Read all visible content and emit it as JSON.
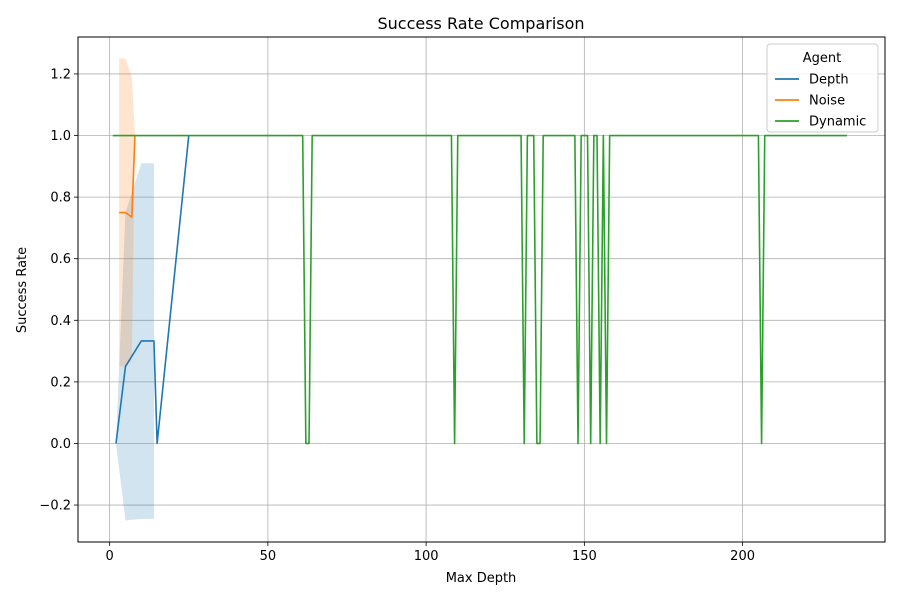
{
  "chart_data": {
    "type": "line",
    "title": "Success Rate Comparison",
    "xlabel": "Max Depth",
    "ylabel": "Success Rate",
    "xlim": [
      -10,
      245
    ],
    "ylim": [
      -0.32,
      1.32
    ],
    "xticks": [
      0,
      50,
      100,
      150,
      200
    ],
    "yticks": [
      -0.2,
      0.0,
      0.2,
      0.4,
      0.6,
      0.8,
      1.0,
      1.2
    ],
    "xtick_labels": [
      "0",
      "50",
      "100",
      "150",
      "200"
    ],
    "ytick_labels": [
      "−0.2",
      "0.0",
      "0.2",
      "0.4",
      "0.6",
      "0.8",
      "1.0",
      "1.2"
    ],
    "grid": true,
    "legend": {
      "title": "Agent",
      "placement": "top-right"
    },
    "series": [
      {
        "name": "Depth",
        "color": "#1f77b4",
        "x": [
          2,
          5,
          10,
          14,
          15,
          25
        ],
        "y": [
          0.0,
          0.25,
          0.333,
          0.333,
          0.0,
          1.0
        ],
        "band": {
          "x": [
            2,
            5,
            10,
            14
          ],
          "lower": [
            0.0,
            -0.25,
            -0.245,
            -0.245
          ],
          "upper": [
            0.0,
            0.75,
            0.91,
            0.91
          ]
        }
      },
      {
        "name": "Noise",
        "color": "#ff7f0e",
        "x": [
          3,
          5,
          7,
          8
        ],
        "y": [
          0.75,
          0.75,
          0.735,
          1.0
        ],
        "band": {
          "x": [
            3,
            5,
            7,
            8
          ],
          "lower": [
            0.25,
            0.25,
            0.27,
            1.0
          ],
          "upper": [
            1.25,
            1.25,
            1.19,
            1.0
          ]
        }
      },
      {
        "name": "Dynamic",
        "color": "#2ca02c",
        "x": [
          1,
          61,
          62,
          63,
          64,
          108,
          109,
          110,
          130,
          131,
          132,
          134,
          135,
          136,
          137,
          147,
          148,
          149,
          151,
          152,
          153,
          154,
          155,
          156,
          157,
          158,
          205,
          206,
          207,
          233
        ],
        "y": [
          1,
          1,
          0,
          0,
          1,
          1,
          0,
          1,
          1,
          0,
          1,
          1,
          0,
          0,
          1,
          1,
          0,
          1,
          1,
          0,
          1,
          1,
          0,
          1,
          0,
          1,
          1,
          0,
          1,
          1
        ]
      }
    ]
  }
}
